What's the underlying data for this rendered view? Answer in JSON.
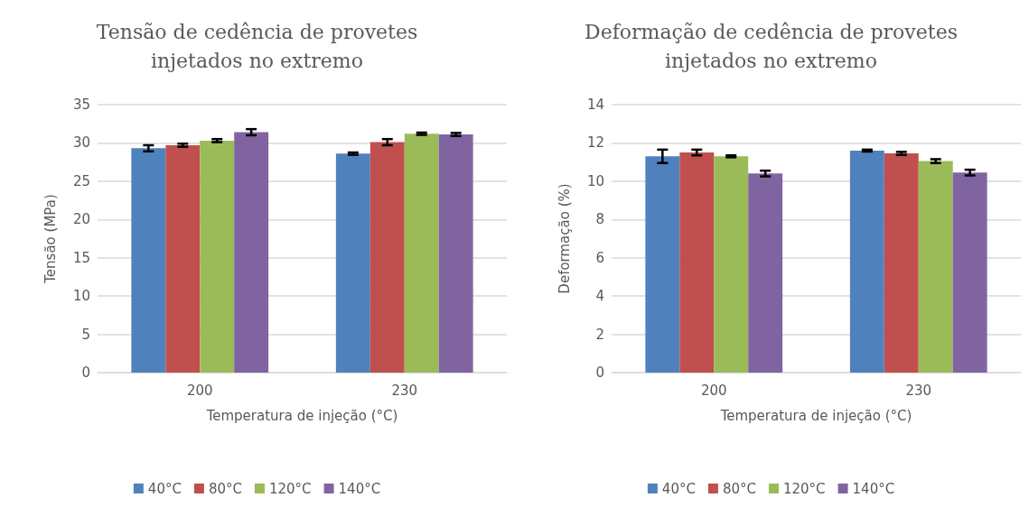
{
  "chart_data": [
    {
      "type": "bar",
      "title": "Tensão de cedência de provetes\ninjetados no extremo",
      "xlabel": "Temperatura de injeção (°C)",
      "ylabel": "Tensão (MPa)",
      "categories": [
        "200",
        "230"
      ],
      "ylim": [
        0,
        35
      ],
      "yticks": [
        0,
        5,
        10,
        15,
        20,
        25,
        30,
        35
      ],
      "grid": "y",
      "legend": "bottom",
      "series": [
        {
          "name": "40°C",
          "color": "#4f81bd",
          "values": [
            29.3,
            28.6
          ],
          "errors": [
            0.4,
            0.15
          ]
        },
        {
          "name": "80°C",
          "color": "#c0504d",
          "values": [
            29.7,
            30.1
          ],
          "errors": [
            0.2,
            0.4
          ]
        },
        {
          "name": "120°C",
          "color": "#9bbb59",
          "values": [
            30.3,
            31.2
          ],
          "errors": [
            0.2,
            0.15
          ]
        },
        {
          "name": "140°C",
          "color": "#8064a2",
          "values": [
            31.4,
            31.1
          ],
          "errors": [
            0.4,
            0.2
          ]
        }
      ]
    },
    {
      "type": "bar",
      "title": "Deformação de cedência de provetes\ninjetados no extremo",
      "xlabel": "Temperatura de injeção (°C)",
      "ylabel": "Deformação (%)",
      "categories": [
        "200",
        "230"
      ],
      "ylim": [
        0,
        14
      ],
      "yticks": [
        0,
        2,
        4,
        6,
        8,
        10,
        12,
        14
      ],
      "grid": "y",
      "legend": "bottom",
      "series": [
        {
          "name": "40°C",
          "color": "#4f81bd",
          "values": [
            11.3,
            11.6
          ],
          "errors": [
            0.35,
            0.05
          ]
        },
        {
          "name": "80°C",
          "color": "#c0504d",
          "values": [
            11.5,
            11.45
          ],
          "errors": [
            0.15,
            0.08
          ]
        },
        {
          "name": "120°C",
          "color": "#9bbb59",
          "values": [
            11.3,
            11.05
          ],
          "errors": [
            0.05,
            0.1
          ]
        },
        {
          "name": "140°C",
          "color": "#8064a2",
          "values": [
            10.4,
            10.45
          ],
          "errors": [
            0.15,
            0.15
          ]
        }
      ]
    }
  ]
}
